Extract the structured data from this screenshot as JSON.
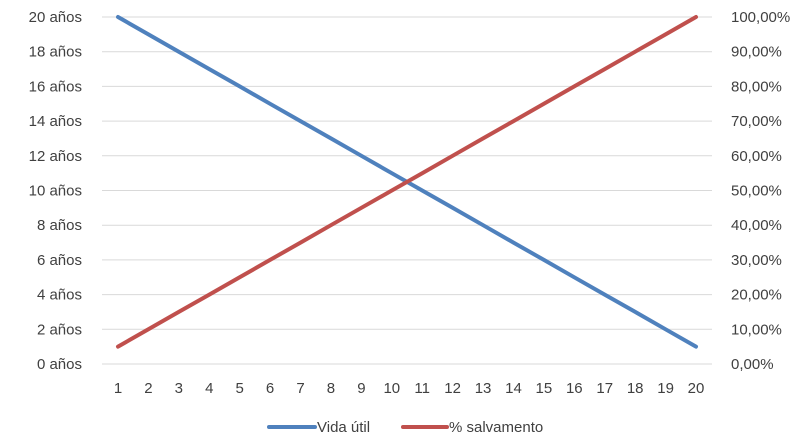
{
  "chart_data": {
    "type": "line",
    "title": "",
    "xlabel": "",
    "ylabel": "",
    "x": [
      1,
      2,
      3,
      4,
      5,
      6,
      7,
      8,
      9,
      10,
      11,
      12,
      13,
      14,
      15,
      16,
      17,
      18,
      19,
      20
    ],
    "x_tick_labels": [
      "1",
      "2",
      "3",
      "4",
      "5",
      "6",
      "7",
      "8",
      "9",
      "10",
      "11",
      "12",
      "13",
      "14",
      "15",
      "16",
      "17",
      "18",
      "19",
      "20"
    ],
    "left_axis": {
      "range": [
        0,
        20
      ],
      "tick_values": [
        0,
        2,
        4,
        6,
        8,
        10,
        12,
        14,
        16,
        18,
        20
      ],
      "tick_labels": [
        "0 años",
        "2 años",
        "4 años",
        "6 años",
        "8 años",
        "10 años",
        "12 años",
        "14 años",
        "16 años",
        "18 años",
        "20 años"
      ]
    },
    "right_axis": {
      "range": [
        0,
        100
      ],
      "tick_values": [
        0,
        10,
        20,
        30,
        40,
        50,
        60,
        70,
        80,
        90,
        100
      ],
      "tick_labels": [
        "0,00%",
        "10,00%",
        "20,00%",
        "30,00%",
        "40,00%",
        "50,00%",
        "60,00%",
        "70,00%",
        "80,00%",
        "90,00%",
        "100,00%"
      ]
    },
    "grid": true,
    "legend_position": "bottom",
    "series": [
      {
        "name": "Vida útil",
        "axis": "left",
        "color": "#4F81BD",
        "values": [
          20,
          19,
          18,
          17,
          16,
          15,
          14,
          13,
          12,
          11,
          10,
          9,
          8,
          7,
          6,
          5,
          4,
          3,
          2,
          1
        ]
      },
      {
        "name": "% salvamento",
        "axis": "right",
        "color": "#C0504D",
        "values": [
          5,
          10,
          15,
          20,
          25,
          30,
          35,
          40,
          45,
          50,
          55,
          60,
          65,
          70,
          75,
          80,
          85,
          90,
          95,
          100
        ]
      }
    ]
  }
}
